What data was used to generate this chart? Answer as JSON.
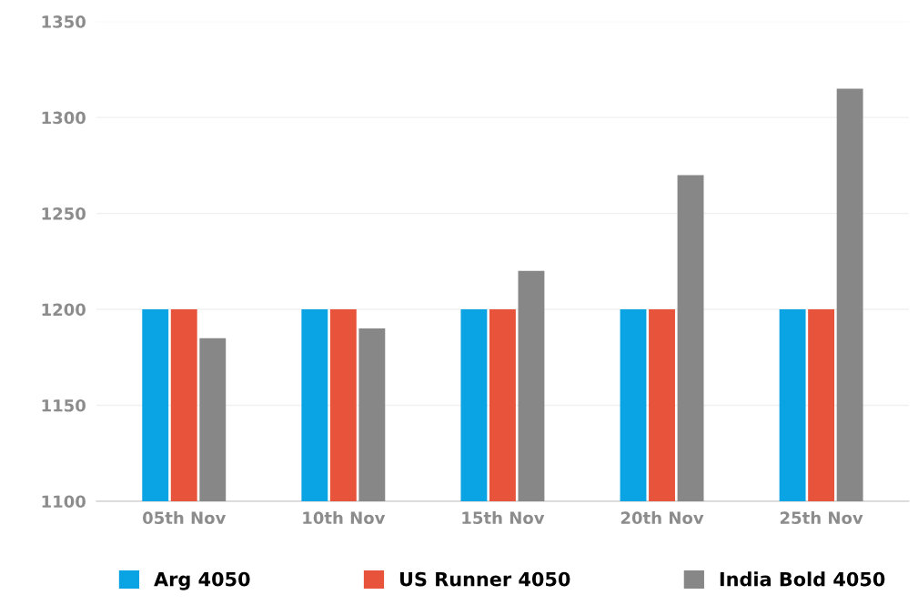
{
  "chart_data": {
    "type": "bar",
    "categories": [
      "05th Nov",
      "10th Nov",
      "15th Nov",
      "20th Nov",
      "25th Nov"
    ],
    "series": [
      {
        "name": "Arg 4050",
        "color": "#0aa3e3",
        "values": [
          1200,
          1200,
          1200,
          1200,
          1200
        ]
      },
      {
        "name": "US Runner 4050",
        "color": "#e8533b",
        "values": [
          1200,
          1200,
          1200,
          1200,
          1200
        ]
      },
      {
        "name": "India Bold 4050",
        "color": "#878787",
        "values": [
          1185,
          1190,
          1220,
          1270,
          1315
        ]
      }
    ],
    "ylim": [
      1100,
      1350
    ],
    "yticks": [
      1100,
      1150,
      1200,
      1250,
      1300,
      1350
    ],
    "grid": "y",
    "legend": "bottom"
  }
}
